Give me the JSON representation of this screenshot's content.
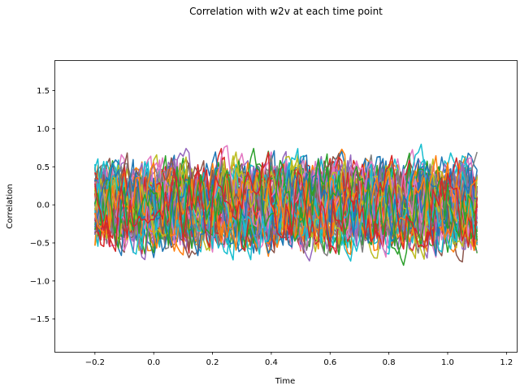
{
  "chart_data": {
    "type": "line",
    "title": "Correlation with w2v at each time point",
    "xlabel": "Time",
    "ylabel": "Correlation",
    "xlim": [
      -0.335,
      1.235
    ],
    "ylim": [
      -1.93,
      1.89
    ],
    "x_start": -0.2,
    "x_end": 1.1,
    "x_step": 0.01,
    "x_ticks": [
      -0.2,
      0.0,
      0.2,
      0.4,
      0.6,
      0.8,
      1.0,
      1.2
    ],
    "x_tick_labels": [
      "−0.2",
      "0.0",
      "0.2",
      "0.4",
      "0.6",
      "0.8",
      "1.0",
      "1.2"
    ],
    "y_ticks": [
      -1.5,
      -1.0,
      -0.5,
      0.0,
      0.5,
      1.0,
      1.5
    ],
    "y_tick_labels": [
      "−1.5",
      "−1.0",
      "−0.5",
      "0.0",
      "0.5",
      "1.0",
      "1.5"
    ],
    "series_count": 64,
    "value_range": [
      -0.93,
      0.93
    ],
    "grid": false,
    "legend": "none",
    "colors": [
      "#1f77b4",
      "#ff7f0e",
      "#2ca02c",
      "#d62728",
      "#9467bd",
      "#8c564b",
      "#e377c2",
      "#7f7f7f",
      "#bcbd22",
      "#17becf"
    ]
  }
}
